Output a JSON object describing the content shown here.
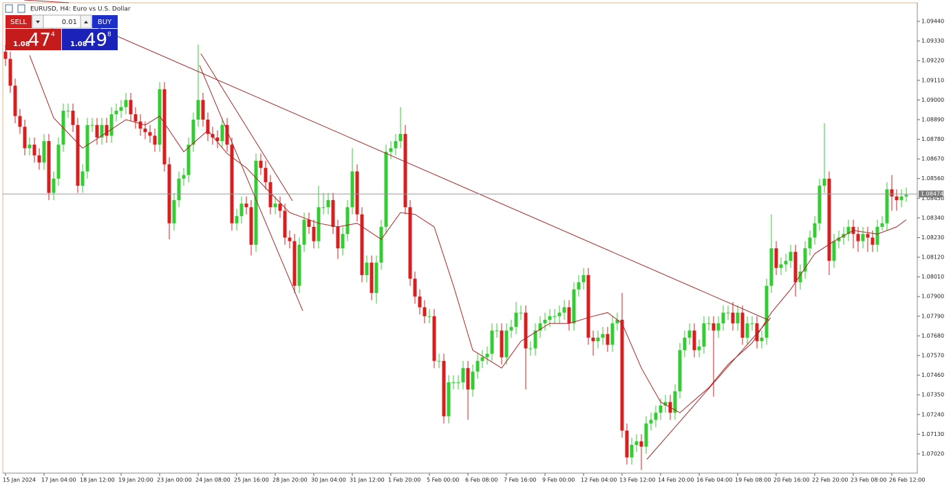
{
  "chart_data": {
    "type": "candlestick",
    "title": "EURUSD, H4:  Euro vs U.S. Dollar",
    "up_color": "#33cc33",
    "down_color": "#d81e1e",
    "grid": false,
    "ylim": [
      1.06912,
      1.09544
    ],
    "yticks": [
      {
        "value": 1.0944,
        "label": "1.09440"
      },
      {
        "value": 1.0933,
        "label": "1.09330"
      },
      {
        "value": 1.0922,
        "label": "1.09220"
      },
      {
        "value": 1.0911,
        "label": "1.09110"
      },
      {
        "value": 1.09,
        "label": "1.09000"
      },
      {
        "value": 1.0889,
        "label": "1.08890"
      },
      {
        "value": 1.0878,
        "label": "1.08780"
      },
      {
        "value": 1.0867,
        "label": "1.08670"
      },
      {
        "value": 1.0856,
        "label": "1.08560"
      },
      {
        "value": 1.0845,
        "label": "1.08450"
      },
      {
        "value": 1.0834,
        "label": "1.08340"
      },
      {
        "value": 1.0823,
        "label": "1.08230"
      },
      {
        "value": 1.0812,
        "label": "1.08120"
      },
      {
        "value": 1.0801,
        "label": "1.08010"
      },
      {
        "value": 1.079,
        "label": "1.07900"
      },
      {
        "value": 1.0779,
        "label": "1.07790"
      },
      {
        "value": 1.0768,
        "label": "1.07680"
      },
      {
        "value": 1.0757,
        "label": "1.07570"
      },
      {
        "value": 1.0746,
        "label": "1.07460"
      },
      {
        "value": 1.0735,
        "label": "1.07350"
      },
      {
        "value": 1.0724,
        "label": "1.07240"
      },
      {
        "value": 1.0713,
        "label": "1.07130"
      },
      {
        "value": 1.0702,
        "label": "1.07020"
      }
    ],
    "xticks": [
      {
        "value": 0,
        "label": "15 Jan 2024"
      },
      {
        "value": 8,
        "label": "17 Jan 04:00"
      },
      {
        "value": 16,
        "label": "18 Jan 12:00"
      },
      {
        "value": 24,
        "label": "19 Jan 20:00"
      },
      {
        "value": 32,
        "label": "23 Jan 00:00"
      },
      {
        "value": 40,
        "label": "24 Jan 08:00"
      },
      {
        "value": 48,
        "label": "25 Jan 16:00"
      },
      {
        "value": 56,
        "label": "28 Jan 20:00"
      },
      {
        "value": 64,
        "label": "30 Jan 04:00"
      },
      {
        "value": 72,
        "label": "31 Jan 12:00"
      },
      {
        "value": 80,
        "label": "1 Feb 20:00"
      },
      {
        "value": 88,
        "label": "5 Feb 00:00"
      },
      {
        "value": 96,
        "label": "6 Feb 08:00"
      },
      {
        "value": 104,
        "label": "7 Feb 16:00"
      },
      {
        "value": 112,
        "label": "9 Feb 00:00"
      },
      {
        "value": 120,
        "label": "12 Feb 04:00"
      },
      {
        "value": 128,
        "label": "13 Feb 12:00"
      },
      {
        "value": 136,
        "label": "14 Feb 20:00"
      },
      {
        "value": 144,
        "label": "16 Feb 04:00"
      },
      {
        "value": 152,
        "label": "19 Feb 08:00"
      },
      {
        "value": 160,
        "label": "20 Feb 16:00"
      },
      {
        "value": 168,
        "label": "22 Feb 20:00"
      },
      {
        "value": 176,
        "label": "23 Feb 08:00"
      },
      {
        "value": 184,
        "label": "26 Feb 12:00"
      }
    ],
    "last_price": 1.08474,
    "open": [
      1.0927,
      1.0923,
      1.0908,
      1.0891,
      1.0885,
      1.0873,
      1.0875,
      1.0869,
      1.0865,
      1.0877,
      1.0848,
      1.0856,
      1.0875,
      1.0894,
      1.0894,
      1.0886,
      1.0852,
      1.086,
      1.0886,
      1.0886,
      1.0879,
      1.0886,
      1.088,
      1.0892,
      1.0894,
      1.0896,
      1.09,
      1.0892,
      1.0888,
      1.0884,
      1.0882,
      1.088,
      1.0875,
      1.0906,
      1.0864,
      1.0831,
      1.0844,
      1.0856,
      1.0858,
      1.0875,
      1.0889,
      1.09,
      1.0889,
      1.0881,
      1.0879,
      1.0877,
      1.0886,
      1.0875,
      1.0831,
      1.0835,
      1.0842,
      1.084,
      1.0819,
      1.0866,
      1.0862,
      1.0854,
      1.084,
      1.0842,
      1.0838,
      1.0823,
      1.0821,
      1.0796,
      1.0819,
      1.0833,
      1.0829,
      1.0821,
      1.084,
      1.084,
      1.0844,
      1.0829,
      1.0817,
      1.0825,
      1.084,
      1.086,
      1.0836,
      1.0802,
      1.0809,
      1.0792,
      1.0809,
      1.0829,
      1.0871,
      1.0873,
      1.0877,
      1.0881,
      1.084,
      1.08,
      1.079,
      1.0784,
      1.0779,
      1.0779,
      1.0754,
      1.0754,
      1.0723,
      1.0742,
      1.0742,
      1.0742,
      1.075,
      1.0738,
      1.0748,
      1.0754,
      1.0756,
      1.0758,
      1.0771,
      1.0771,
      1.0756,
      1.0771,
      1.0773,
      1.0781,
      1.0781,
      1.0761,
      1.0761,
      1.0771,
      1.0775,
      1.0777,
      1.0779,
      1.0779,
      1.0781,
      1.0784,
      1.0775,
      1.0794,
      1.0798,
      1.0802,
      1.0767,
      1.0765,
      1.0767,
      1.0769,
      1.0763,
      1.0775,
      1.0777,
      1.0715,
      1.07,
      1.0707,
      1.0709,
      1.0706,
      1.0719,
      1.0721,
      1.0725,
      1.0729,
      1.0731,
      1.0725,
      1.0737,
      1.076,
      1.0767,
      1.0771,
      1.076,
      1.0762,
      1.0775,
      1.0775,
      1.0771,
      1.0775,
      1.0781,
      1.0781,
      1.0775,
      1.0781,
      1.0767,
      1.0775,
      1.0775,
      1.0765,
      1.0767,
      1.0796,
      1.0817,
      1.0806,
      1.0808,
      1.081,
      1.0815,
      1.0798,
      1.0804,
      1.0817,
      1.0823,
      1.0831,
      1.0852,
      1.0856,
      1.081,
      1.0821,
      1.0823,
      1.0825,
      1.0829,
      1.0825,
      1.0821,
      1.0825,
      1.0823,
      1.0819,
      1.0829,
      1.0831,
      1.085,
      1.0846,
      1.0844,
      1.0846
    ],
    "high": [
      1.0931,
      1.0927,
      1.0912,
      1.0895,
      1.0889,
      1.0879,
      1.0879,
      1.0873,
      1.0881,
      1.0881,
      1.086,
      1.0879,
      1.0898,
      1.0898,
      1.0898,
      1.089,
      1.0864,
      1.089,
      1.089,
      1.089,
      1.089,
      1.089,
      1.0896,
      1.0898,
      1.09,
      1.0904,
      1.0904,
      1.0896,
      1.0892,
      1.0888,
      1.0886,
      1.0884,
      1.091,
      1.091,
      1.0868,
      1.0848,
      1.086,
      1.0862,
      1.0879,
      1.0893,
      1.0931,
      1.0904,
      1.0893,
      1.0885,
      1.0883,
      1.089,
      1.089,
      1.0879,
      1.0839,
      1.0846,
      1.0846,
      1.0844,
      1.087,
      1.087,
      1.0866,
      1.0858,
      1.0846,
      1.0846,
      1.0842,
      1.0827,
      1.0825,
      1.0823,
      1.0837,
      1.0837,
      1.0833,
      1.0852,
      1.0848,
      1.0848,
      1.0848,
      1.0833,
      1.0829,
      1.0844,
      1.0873,
      1.0864,
      1.084,
      1.0813,
      1.0813,
      1.0813,
      1.0833,
      1.0875,
      1.0877,
      1.0881,
      1.0896,
      1.0886,
      1.0844,
      1.0804,
      1.0794,
      1.0788,
      1.0783,
      1.0783,
      1.0758,
      1.0758,
      1.0746,
      1.0746,
      1.0746,
      1.0754,
      1.0754,
      1.0752,
      1.0758,
      1.076,
      1.0762,
      1.0775,
      1.0775,
      1.0775,
      1.0775,
      1.0777,
      1.0787,
      1.0785,
      1.0785,
      1.0765,
      1.0775,
      1.0779,
      1.0781,
      1.0783,
      1.0783,
      1.0785,
      1.0788,
      1.0788,
      1.0798,
      1.0802,
      1.0806,
      1.0806,
      1.0771,
      1.0771,
      1.0773,
      1.0773,
      1.0779,
      1.0781,
      1.0792,
      1.0719,
      1.0711,
      1.0713,
      1.0713,
      1.0723,
      1.0725,
      1.0729,
      1.0733,
      1.0735,
      1.0735,
      1.0741,
      1.0764,
      1.0771,
      1.0775,
      1.0775,
      1.0766,
      1.0779,
      1.0779,
      1.0779,
      1.0779,
      1.0785,
      1.0785,
      1.0787,
      1.0785,
      1.0785,
      1.0779,
      1.0779,
      1.0779,
      1.0771,
      1.08,
      1.0836,
      1.0821,
      1.0812,
      1.0814,
      1.0819,
      1.0819,
      1.0808,
      1.0821,
      1.0827,
      1.0835,
      1.0856,
      1.0887,
      1.086,
      1.0825,
      1.0827,
      1.0829,
      1.0833,
      1.0833,
      1.0829,
      1.0829,
      1.0829,
      1.0827,
      1.0833,
      1.0835,
      1.0854,
      1.0858,
      1.085,
      1.085,
      1.0851
    ],
    "low": [
      1.0919,
      1.0904,
      1.0887,
      1.0881,
      1.0869,
      1.0869,
      1.0865,
      1.0861,
      1.0861,
      1.0844,
      1.0844,
      1.0852,
      1.0871,
      1.089,
      1.0882,
      1.0848,
      1.0848,
      1.0856,
      1.0882,
      1.0875,
      1.0875,
      1.0876,
      1.0876,
      1.0888,
      1.089,
      1.0892,
      1.0888,
      1.0884,
      1.088,
      1.0878,
      1.0876,
      1.0871,
      1.0871,
      1.086,
      1.0822,
      1.0827,
      1.084,
      1.0852,
      1.0854,
      1.0871,
      1.0885,
      1.0885,
      1.0877,
      1.0875,
      1.0873,
      1.0873,
      1.0871,
      1.0827,
      1.0827,
      1.0831,
      1.0836,
      1.0813,
      1.0815,
      1.0858,
      1.085,
      1.0836,
      1.0836,
      1.0834,
      1.0819,
      1.0817,
      1.0792,
      1.0792,
      1.0815,
      1.0825,
      1.0817,
      1.0817,
      1.0836,
      1.0836,
      1.0825,
      1.0811,
      1.0813,
      1.0821,
      1.0836,
      1.0832,
      1.0798,
      1.0798,
      1.0788,
      1.0786,
      1.0805,
      1.0825,
      1.0867,
      1.0869,
      1.0873,
      1.0836,
      1.0796,
      1.0786,
      1.078,
      1.0775,
      1.0775,
      1.075,
      1.075,
      1.0719,
      1.0719,
      1.0738,
      1.0738,
      1.0738,
      1.0721,
      1.0734,
      1.0744,
      1.075,
      1.0752,
      1.0754,
      1.0767,
      1.0752,
      1.0752,
      1.0767,
      1.0769,
      1.0777,
      1.0738,
      1.0757,
      1.0757,
      1.0767,
      1.0771,
      1.0773,
      1.0775,
      1.0775,
      1.0777,
      1.0771,
      1.0771,
      1.079,
      1.0794,
      1.0763,
      1.0757,
      1.0761,
      1.0763,
      1.0759,
      1.0759,
      1.0771,
      1.0711,
      1.0696,
      1.0696,
      1.0703,
      1.0693,
      1.0702,
      1.0715,
      1.0717,
      1.0721,
      1.0725,
      1.0721,
      1.0721,
      1.0733,
      1.0756,
      1.0763,
      1.0756,
      1.0756,
      1.0758,
      1.0771,
      1.0734,
      1.0767,
      1.0771,
      1.0777,
      1.0771,
      1.0771,
      1.0763,
      1.0763,
      1.0771,
      1.0761,
      1.0761,
      1.0763,
      1.0792,
      1.0802,
      1.0802,
      1.0804,
      1.0806,
      1.079,
      1.0794,
      1.08,
      1.0813,
      1.0819,
      1.0827,
      1.0848,
      1.0802,
      1.0806,
      1.0817,
      1.0819,
      1.0821,
      1.0817,
      1.0815,
      1.0817,
      1.0815,
      1.0815,
      1.0815,
      1.0827,
      1.0827,
      1.0838,
      1.0838,
      1.084,
      1.0843
    ],
    "close": [
      1.0923,
      1.0908,
      1.0891,
      1.0885,
      1.0873,
      1.0875,
      1.0869,
      1.0865,
      1.0877,
      1.0848,
      1.0856,
      1.0875,
      1.0894,
      1.0894,
      1.0886,
      1.0852,
      1.086,
      1.0886,
      1.0886,
      1.0879,
      1.0886,
      1.088,
      1.0892,
      1.0894,
      1.0896,
      1.09,
      1.0892,
      1.0888,
      1.0884,
      1.0882,
      1.088,
      1.0875,
      1.0906,
      1.0864,
      1.0831,
      1.0844,
      1.0856,
      1.0858,
      1.0875,
      1.0889,
      1.09,
      1.0889,
      1.0881,
      1.0879,
      1.0877,
      1.0886,
      1.0875,
      1.0831,
      1.0835,
      1.0842,
      1.084,
      1.0819,
      1.0866,
      1.0862,
      1.0854,
      1.084,
      1.0842,
      1.0838,
      1.0823,
      1.0821,
      1.0796,
      1.0819,
      1.0833,
      1.0829,
      1.0821,
      1.084,
      1.084,
      1.0844,
      1.0829,
      1.0817,
      1.0825,
      1.084,
      1.086,
      1.0836,
      1.0802,
      1.0809,
      1.0792,
      1.0809,
      1.0829,
      1.0871,
      1.0873,
      1.0877,
      1.0881,
      1.084,
      1.08,
      1.079,
      1.0784,
      1.0779,
      1.0779,
      1.0754,
      1.0754,
      1.0723,
      1.0742,
      1.0742,
      1.0742,
      1.075,
      1.0738,
      1.0748,
      1.0754,
      1.0756,
      1.0758,
      1.0771,
      1.0771,
      1.0756,
      1.0771,
      1.0773,
      1.0781,
      1.0781,
      1.0761,
      1.0761,
      1.0771,
      1.0775,
      1.0777,
      1.0779,
      1.0779,
      1.0781,
      1.0784,
      1.0775,
      1.0794,
      1.0798,
      1.0802,
      1.0767,
      1.0765,
      1.0767,
      1.0769,
      1.0763,
      1.0775,
      1.0777,
      1.0715,
      1.07,
      1.0707,
      1.0709,
      1.0706,
      1.0719,
      1.0721,
      1.0725,
      1.0729,
      1.0731,
      1.0725,
      1.0737,
      1.076,
      1.0767,
      1.0771,
      1.076,
      1.0762,
      1.0775,
      1.0775,
      1.0771,
      1.0775,
      1.0781,
      1.0781,
      1.0775,
      1.0781,
      1.0767,
      1.0775,
      1.0775,
      1.0765,
      1.0767,
      1.0796,
      1.0817,
      1.0806,
      1.0808,
      1.081,
      1.0815,
      1.0798,
      1.0804,
      1.0817,
      1.0823,
      1.0831,
      1.0852,
      1.0856,
      1.081,
      1.0821,
      1.0823,
      1.0825,
      1.0829,
      1.0825,
      1.0821,
      1.0825,
      1.0823,
      1.0819,
      1.0829,
      1.0831,
      1.085,
      1.0846,
      1.0844,
      1.0846,
      1.0847
    ],
    "moving_average": {
      "color": "#b22222",
      "x": [
        5,
        10,
        16,
        20,
        25,
        29,
        32,
        37,
        42,
        46,
        50,
        55,
        59,
        65,
        69,
        73,
        78,
        82,
        85,
        89,
        93,
        97,
        103,
        107,
        113,
        117,
        122,
        125,
        128,
        132,
        136,
        140,
        146,
        150,
        155,
        159,
        163,
        168,
        172,
        176,
        181,
        185,
        187
      ],
      "values": [
        1.0925,
        1.089,
        1.0873,
        1.088,
        1.0889,
        1.0886,
        1.0891,
        1.0871,
        1.0883,
        1.087,
        1.0862,
        1.0848,
        1.0837,
        1.0831,
        1.0829,
        1.0831,
        1.0822,
        1.0837,
        1.0836,
        1.0829,
        1.0796,
        1.076,
        1.075,
        1.0765,
        1.0775,
        1.0775,
        1.0779,
        1.0781,
        1.0775,
        1.075,
        1.0731,
        1.0725,
        1.0739,
        1.0752,
        1.0764,
        1.0781,
        1.0794,
        1.0814,
        1.0821,
        1.0827,
        1.0825,
        1.0829,
        1.0833
      ]
    }
  },
  "trade_panel": {
    "sell_label": "SELL",
    "buy_label": "BUY",
    "volume": "0.01",
    "sell_price": {
      "prefix": "1.08",
      "main": "47",
      "suffix": "4"
    },
    "buy_price": {
      "prefix": "1.08",
      "main": "49",
      "suffix": "8"
    }
  }
}
